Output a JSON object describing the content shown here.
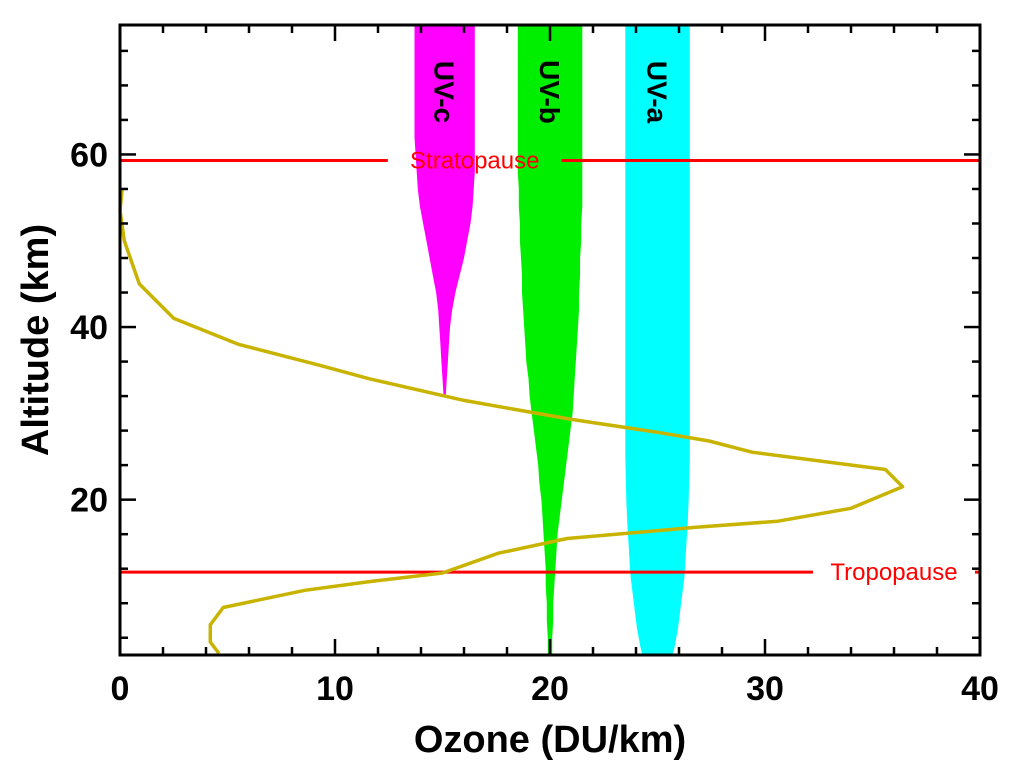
{
  "chart_data": {
    "type": "line",
    "xlabel": "Ozone (DU/km)",
    "ylabel": "Altitude (km)",
    "xlim": [
      0,
      40
    ],
    "ylim": [
      2,
      75
    ],
    "x_ticks": [
      0,
      10,
      20,
      30,
      40
    ],
    "y_ticks": [
      20,
      40,
      60
    ],
    "grid": false,
    "series": [
      {
        "type": "line",
        "color": "#c8b400",
        "x": [
          4.6,
          4.2,
          4.2,
          4.8,
          8.6,
          11.6,
          15.0,
          17.6,
          20.8,
          26.8,
          30.6,
          34.0,
          36.4,
          35.6,
          29.4,
          27.4,
          25.0,
          21.0,
          16.0,
          11.6,
          9.4,
          5.5,
          2.5,
          0.9,
          0.2,
          0.0,
          0.1
        ],
        "y": [
          2.2,
          3.5,
          5.5,
          7.5,
          9.5,
          10.5,
          11.5,
          13.8,
          15.5,
          16.8,
          17.5,
          19.0,
          21.5,
          23.5,
          25.5,
          26.8,
          27.8,
          29.3,
          31.5,
          34.0,
          35.5,
          38.0,
          41.0,
          45.0,
          50.0,
          53.5,
          56.0
        ]
      }
    ],
    "bands": [
      {
        "label": "UV-c",
        "color": "#ff00ff",
        "y": [
          32,
          34,
          36,
          38,
          40,
          42,
          44,
          46,
          48,
          50,
          52,
          54,
          56,
          58,
          60,
          62,
          66,
          70,
          75
        ],
        "left": [
          15.05,
          15.0,
          14.95,
          14.9,
          14.85,
          14.8,
          14.7,
          14.55,
          14.4,
          14.25,
          14.1,
          13.95,
          13.85,
          13.8,
          13.75,
          13.7,
          13.7,
          13.7,
          13.7
        ],
        "right": [
          15.15,
          15.2,
          15.25,
          15.3,
          15.35,
          15.45,
          15.6,
          15.8,
          16.0,
          16.15,
          16.3,
          16.4,
          16.45,
          16.5,
          16.5,
          16.5,
          16.5,
          16.5,
          16.5
        ]
      },
      {
        "label": "UV-b",
        "color": "#00ee00",
        "y": [
          2,
          4,
          6,
          8,
          10,
          12,
          14,
          16,
          18,
          20,
          22,
          24,
          26,
          28,
          30,
          32,
          34,
          36,
          38,
          40,
          42,
          44,
          46,
          48,
          50,
          52,
          54,
          56,
          58,
          60,
          75
        ],
        "left": [
          19.9,
          19.9,
          19.85,
          19.85,
          19.8,
          19.8,
          19.75,
          19.7,
          19.65,
          19.6,
          19.5,
          19.45,
          19.35,
          19.25,
          19.15,
          19.05,
          19.0,
          18.9,
          18.85,
          18.8,
          18.75,
          18.7,
          18.7,
          18.65,
          18.6,
          18.6,
          18.55,
          18.55,
          18.5,
          18.5,
          18.5
        ],
        "right": [
          20.1,
          20.1,
          20.15,
          20.15,
          20.2,
          20.25,
          20.3,
          20.35,
          20.45,
          20.55,
          20.65,
          20.75,
          20.85,
          20.95,
          21.05,
          21.1,
          21.15,
          21.2,
          21.25,
          21.3,
          21.35,
          21.35,
          21.4,
          21.4,
          21.45,
          21.45,
          21.5,
          21.5,
          21.5,
          21.5,
          21.5
        ]
      },
      {
        "label": "UV-a",
        "color": "#00ffff",
        "y": [
          2,
          3,
          5,
          7,
          9,
          11,
          13,
          15,
          17,
          20,
          25,
          30,
          40,
          50,
          60,
          75
        ],
        "left": [
          24.3,
          24.2,
          24.05,
          23.95,
          23.85,
          23.75,
          23.7,
          23.65,
          23.6,
          23.55,
          23.5,
          23.5,
          23.5,
          23.5,
          23.5,
          23.5
        ],
        "right": [
          25.7,
          25.8,
          25.95,
          26.05,
          26.15,
          26.25,
          26.3,
          26.35,
          26.4,
          26.45,
          26.5,
          26.5,
          26.5,
          26.5,
          26.5,
          26.5
        ]
      }
    ],
    "reference_lines": [
      {
        "label": "Stratopause",
        "y": 59.3,
        "label_x": 16.5,
        "color": "#ff0000"
      },
      {
        "label": "Tropopause",
        "y": 11.6,
        "label_x": 36.0,
        "color": "#ff0000"
      }
    ]
  }
}
